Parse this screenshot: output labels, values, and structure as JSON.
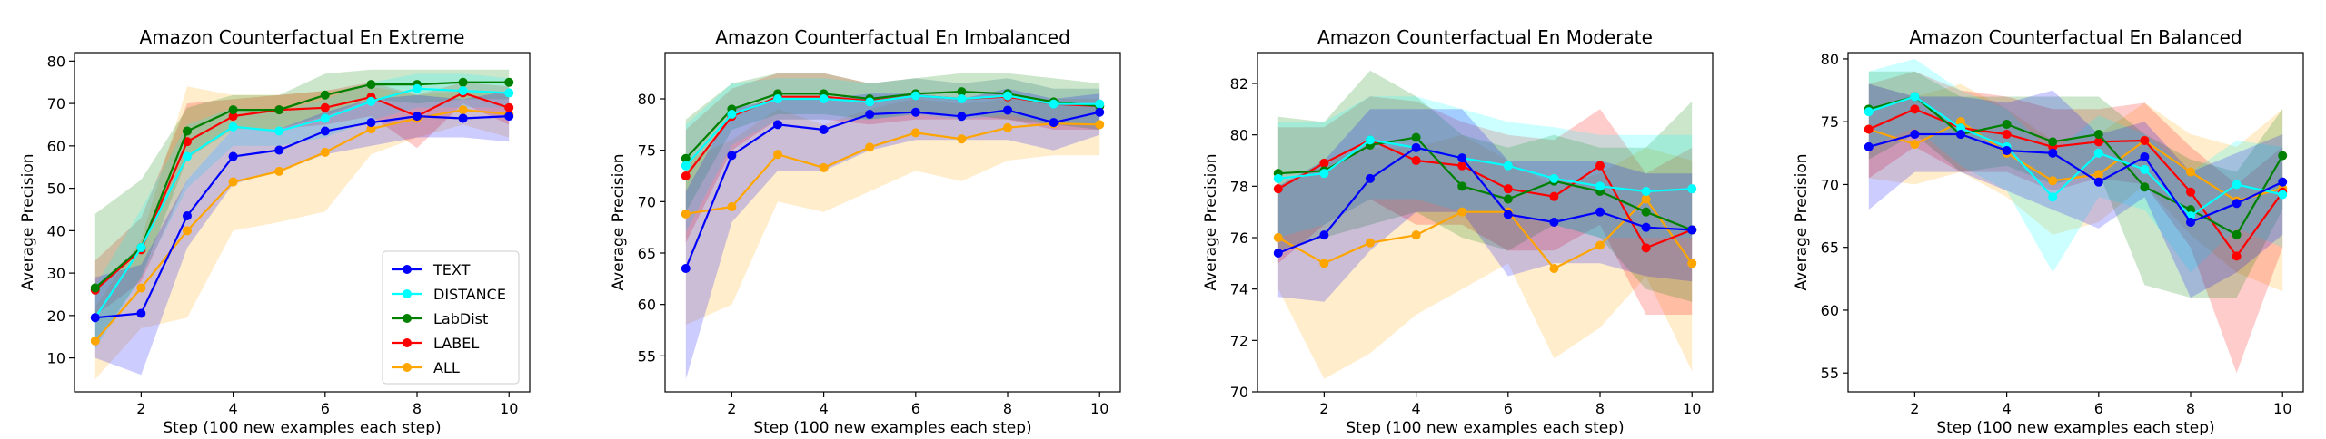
{
  "colors": {
    "TEXT": "#0000ff",
    "DISTANCE": "#00ffff",
    "LabDist": "#008000",
    "LABEL": "#ff0000",
    "ALL": "#ffa500"
  },
  "chart_data": [
    {
      "type": "line",
      "title": "Amazon Counterfactual En Extreme",
      "xlabel": "Step (100 new examples each step)",
      "ylabel": "Average Precision",
      "x": [
        1,
        2,
        3,
        4,
        5,
        6,
        7,
        8,
        9,
        10
      ],
      "xticks": [
        2,
        4,
        6,
        8,
        10
      ],
      "xlim": [
        0.55,
        10.45
      ],
      "ylim": [
        2,
        82
      ],
      "yticks": [
        10,
        20,
        30,
        40,
        50,
        60,
        70,
        80
      ],
      "legend": {
        "placement": "lower-right",
        "labels": [
          "TEXT",
          "DISTANCE",
          "LabDist",
          "LABEL",
          "ALL"
        ]
      },
      "series": [
        {
          "name": "TEXT",
          "values": [
            19.5,
            20.5,
            43.5,
            57.5,
            59,
            63.5,
            65.5,
            67,
            66.5,
            67
          ],
          "lower": [
            10,
            6,
            36,
            51,
            54,
            58,
            60,
            62,
            62,
            61
          ],
          "upper": [
            29,
            32,
            52,
            64,
            64,
            68,
            71,
            72,
            71,
            73
          ]
        },
        {
          "name": "DISTANCE",
          "values": [
            19.5,
            36,
            57.5,
            64.5,
            63.5,
            66.5,
            70.5,
            73.5,
            73,
            72.5
          ],
          "lower": [
            12,
            29,
            50,
            60,
            60,
            62,
            66,
            69,
            69,
            69
          ],
          "upper": [
            27,
            45,
            65,
            69,
            68,
            71,
            75,
            77,
            77,
            76
          ]
        },
        {
          "name": "LabDist",
          "values": [
            26.5,
            36,
            63.5,
            68.5,
            68.5,
            72,
            74.5,
            74.5,
            75,
            75
          ],
          "lower": [
            13,
            29,
            57,
            64,
            64,
            67,
            71,
            70,
            71,
            71
          ],
          "upper": [
            44,
            52,
            69,
            72,
            72,
            77,
            78,
            78,
            78,
            78
          ]
        },
        {
          "name": "LABEL",
          "values": [
            26,
            35.5,
            61,
            67,
            68.5,
            69,
            71.5,
            67,
            72.5,
            69
          ],
          "lower": [
            20,
            28,
            52,
            64,
            64,
            65,
            67,
            59.5,
            70,
            65
          ],
          "upper": [
            33,
            43,
            70,
            71,
            72,
            73,
            75,
            72,
            75,
            74
          ]
        },
        {
          "name": "ALL",
          "values": [
            14,
            26.5,
            40,
            51.5,
            54,
            58.5,
            64,
            66.5,
            68.5,
            67.5
          ],
          "lower": [
            5,
            17,
            19.5,
            40,
            42,
            44.5,
            58,
            62,
            65,
            62
          ],
          "upper": [
            22,
            38,
            74,
            72,
            72,
            73,
            74,
            72,
            73,
            72
          ]
        }
      ]
    },
    {
      "type": "line",
      "title": "Amazon Counterfactual En Imbalanced",
      "xlabel": "Step (100 new examples each step)",
      "ylabel": "Average Precision",
      "x": [
        1,
        2,
        3,
        4,
        5,
        6,
        7,
        8,
        9,
        10
      ],
      "xticks": [
        2,
        4,
        6,
        8,
        10
      ],
      "xlim": [
        0.55,
        10.45
      ],
      "ylim": [
        51.5,
        84.5
      ],
      "yticks": [
        55,
        60,
        65,
        70,
        75,
        80
      ],
      "series": [
        {
          "name": "TEXT",
          "values": [
            63.5,
            74.5,
            77.5,
            77,
            78.5,
            78.7,
            78.3,
            78.9,
            77.7,
            78.7
          ],
          "lower": [
            52.7,
            68,
            73,
            73,
            75,
            76,
            76,
            76,
            75,
            76.5
          ],
          "upper": [
            71,
            79,
            80,
            80,
            80.5,
            80.5,
            80,
            81,
            80,
            80.5
          ]
        },
        {
          "name": "DISTANCE",
          "values": [
            73.5,
            78.5,
            80,
            80,
            79.7,
            80.3,
            80,
            80.3,
            79.5,
            79.5
          ],
          "lower": [
            67,
            75.5,
            78,
            78,
            78,
            78.5,
            78,
            78.5,
            77.5,
            77.5
          ],
          "upper": [
            77.5,
            81.5,
            82,
            82,
            81.5,
            82,
            81.5,
            82,
            81,
            81
          ]
        },
        {
          "name": "LabDist",
          "values": [
            74.2,
            79,
            80.5,
            80.5,
            80,
            80.5,
            80.7,
            80.5,
            79.7,
            79.3
          ],
          "lower": [
            69,
            77,
            78.5,
            78.5,
            78,
            78.5,
            78.5,
            78,
            77.5,
            77
          ],
          "upper": [
            78,
            81.5,
            82.5,
            82.5,
            81.5,
            82,
            82.5,
            82.5,
            82,
            81.5
          ]
        },
        {
          "name": "LABEL",
          "values": [
            72.5,
            78.3,
            80.2,
            80.2,
            79.8,
            80.3,
            80,
            80.2,
            79.5,
            79.3
          ],
          "lower": [
            66,
            75,
            78,
            78,
            77.5,
            78,
            78,
            78,
            77,
            77
          ],
          "upper": [
            77,
            81,
            82.5,
            82.5,
            81.5,
            82,
            81.5,
            82,
            81,
            81
          ]
        },
        {
          "name": "ALL",
          "values": [
            68.8,
            69.5,
            74.6,
            73.3,
            75.3,
            76.7,
            76.1,
            77.2,
            77.6,
            77.5
          ],
          "lower": [
            58,
            60,
            70,
            69,
            71,
            73,
            72,
            74,
            74.5,
            74.5
          ],
          "upper": [
            74,
            76,
            79,
            77.5,
            79,
            80,
            79.5,
            80,
            80,
            80
          ]
        }
      ]
    },
    {
      "type": "line",
      "title": "Amazon Counterfactual En Moderate",
      "xlabel": "Step (100 new examples each step)",
      "ylabel": "Average Precision",
      "x": [
        1,
        2,
        3,
        4,
        5,
        6,
        7,
        8,
        9,
        10
      ],
      "xticks": [
        2,
        4,
        6,
        8,
        10
      ],
      "xlim": [
        0.55,
        10.45
      ],
      "ylim": [
        70,
        83.2
      ],
      "yticks": [
        70,
        72,
        74,
        76,
        78,
        80,
        82
      ],
      "series": [
        {
          "name": "TEXT",
          "values": [
            75.4,
            76.1,
            78.3,
            79.5,
            79.1,
            76.9,
            76.6,
            77,
            76.4,
            76.3
          ],
          "lower": [
            73.7,
            73.5,
            75.5,
            77,
            77,
            74.5,
            75,
            75,
            74.5,
            74.3
          ],
          "upper": [
            78,
            79,
            81,
            81,
            81,
            79,
            79,
            79,
            78.5,
            78.5
          ]
        },
        {
          "name": "DISTANCE",
          "values": [
            78.3,
            78.5,
            79.8,
            79.5,
            79.1,
            78.8,
            78.3,
            78,
            77.8,
            77.9
          ],
          "lower": [
            76,
            76.5,
            77.5,
            77.5,
            77,
            77,
            76.5,
            76,
            76,
            76
          ],
          "upper": [
            80.5,
            80.5,
            81.5,
            81.5,
            81,
            80.5,
            80.3,
            80,
            80,
            80
          ]
        },
        {
          "name": "LabDist",
          "values": [
            78.5,
            78.6,
            79.6,
            79.9,
            78,
            77.5,
            78.2,
            77.8,
            77,
            76.3
          ],
          "lower": [
            75.5,
            76,
            76.5,
            77,
            76,
            75.5,
            76.5,
            76,
            74,
            73.5
          ],
          "upper": [
            80.7,
            80.5,
            82.5,
            81.5,
            80,
            79.5,
            80,
            79.5,
            79.5,
            81.3
          ]
        },
        {
          "name": "LABEL",
          "values": [
            77.9,
            78.9,
            79.8,
            79,
            78.8,
            77.9,
            77.6,
            78.8,
            75.6,
            76.3
          ],
          "lower": [
            75,
            76.5,
            77.5,
            76.5,
            76.5,
            75.5,
            75.5,
            76.5,
            73,
            73
          ],
          "upper": [
            80.3,
            80.3,
            81.5,
            81.3,
            80.5,
            80,
            79.8,
            81,
            78.5,
            79.5
          ]
        },
        {
          "name": "ALL",
          "values": [
            76,
            75,
            75.8,
            76.1,
            77,
            77,
            74.8,
            75.7,
            77.5,
            75
          ],
          "lower": [
            74,
            70.5,
            71.5,
            73,
            74,
            75,
            71.3,
            72.5,
            74.5,
            70.8
          ],
          "upper": [
            78,
            79,
            79.5,
            79.5,
            80,
            79,
            78,
            78.5,
            79.5,
            79
          ]
        }
      ]
    },
    {
      "type": "line",
      "title": "Amazon Counterfactual En Balanced",
      "xlabel": "Step (100 new examples each step)",
      "ylabel": "Average Precision",
      "x": [
        1,
        2,
        3,
        4,
        5,
        6,
        7,
        8,
        9,
        10
      ],
      "xticks": [
        2,
        4,
        6,
        8,
        10
      ],
      "xlim": [
        0.55,
        10.45
      ],
      "ylim": [
        53.5,
        80.5
      ],
      "yticks": [
        55,
        60,
        65,
        70,
        75,
        80
      ],
      "series": [
        {
          "name": "TEXT",
          "values": [
            73,
            74,
            74,
            72.7,
            72.5,
            70.2,
            72.2,
            67,
            68.5,
            70.2
          ],
          "lower": [
            68,
            71,
            71,
            69.5,
            68,
            66.5,
            69,
            61,
            63,
            66
          ],
          "upper": [
            78,
            77,
            77,
            76.5,
            77.5,
            74,
            75,
            71,
            72.5,
            74
          ]
        },
        {
          "name": "DISTANCE",
          "values": [
            75.8,
            77,
            74.5,
            73,
            69,
            72.5,
            71.2,
            67.5,
            70,
            69.2
          ],
          "lower": [
            73,
            74.5,
            71.5,
            69.5,
            63,
            69,
            68,
            63,
            66.5,
            65
          ],
          "upper": [
            79,
            80,
            77.5,
            76,
            72.5,
            75.5,
            74,
            71,
            73.5,
            73
          ]
        },
        {
          "name": "LabDist",
          "values": [
            76,
            77,
            74,
            74.8,
            73.4,
            74,
            69.8,
            68,
            66,
            72.3
          ],
          "lower": [
            72,
            74,
            71,
            71.5,
            70,
            71,
            62,
            61,
            61,
            68
          ],
          "upper": [
            79,
            79,
            77,
            77,
            77,
            77,
            74,
            72,
            71,
            76
          ]
        },
        {
          "name": "LABEL",
          "values": [
            74.4,
            76,
            74.5,
            74,
            73,
            73.4,
            73.5,
            69.4,
            64.3,
            69.4
          ],
          "lower": [
            70.5,
            73,
            71,
            71,
            69.5,
            70.5,
            70,
            65,
            55,
            65
          ],
          "upper": [
            78,
            79,
            77.5,
            77,
            76,
            76,
            76.5,
            73,
            70,
            73
          ]
        },
        {
          "name": "ALL",
          "values": [
            74.4,
            73.2,
            75,
            72.5,
            70.3,
            70.8,
            73.5,
            71,
            68.7,
            69.7
          ],
          "lower": [
            70.5,
            70,
            71,
            69,
            66,
            67,
            70,
            66,
            63,
            61.5
          ],
          "upper": [
            78,
            77,
            78,
            76,
            73.5,
            74,
            76.5,
            74,
            73,
            76
          ]
        }
      ]
    }
  ]
}
